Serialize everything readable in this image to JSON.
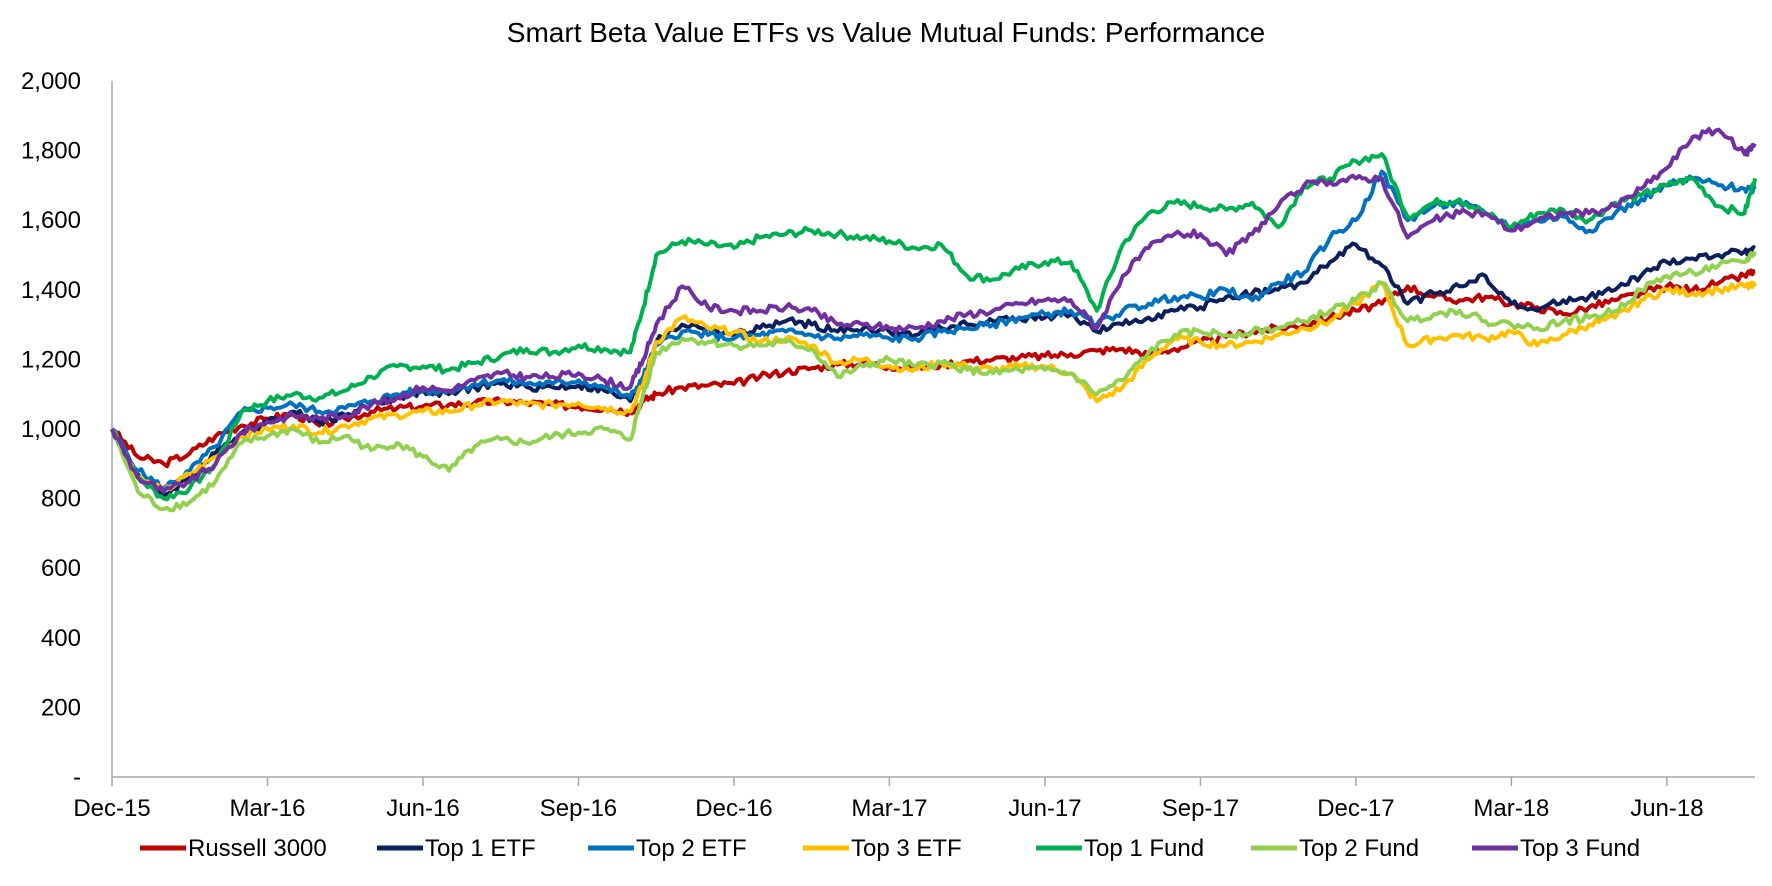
{
  "chart_data": {
    "type": "line",
    "title": "Smart Beta Value ETFs vs Value Mutual Funds: Performance",
    "xlabel": "",
    "ylabel": "",
    "ylim": [
      0,
      2000
    ],
    "yticks": [
      {
        "value": 0,
        "label": "-"
      },
      {
        "value": 200,
        "label": "200"
      },
      {
        "value": 400,
        "label": "400"
      },
      {
        "value": 600,
        "label": "600"
      },
      {
        "value": 800,
        "label": "800"
      },
      {
        "value": 1000,
        "label": "1,000"
      },
      {
        "value": 1200,
        "label": "1,200"
      },
      {
        "value": 1400,
        "label": "1,400"
      },
      {
        "value": 1600,
        "label": "1,600"
      },
      {
        "value": 1800,
        "label": "1,800"
      },
      {
        "value": 2000,
        "label": "2,000"
      }
    ],
    "xlim": [
      0,
      31.7
    ],
    "xticks": [
      {
        "value": 0,
        "label": "Dec-15"
      },
      {
        "value": 3,
        "label": "Mar-16"
      },
      {
        "value": 6,
        "label": "Jun-16"
      },
      {
        "value": 9,
        "label": "Sep-16"
      },
      {
        "value": 12,
        "label": "Dec-16"
      },
      {
        "value": 15,
        "label": "Mar-17"
      },
      {
        "value": 18,
        "label": "Jun-17"
      },
      {
        "value": 21,
        "label": "Sep-17"
      },
      {
        "value": 24,
        "label": "Dec-17"
      },
      {
        "value": 27,
        "label": "Mar-18"
      },
      {
        "value": 30,
        "label": "Jun-18"
      }
    ],
    "grid": false,
    "legend_position": "bottom",
    "x": [
      0,
      0.5,
      1,
      1.5,
      2,
      2.5,
      3,
      3.5,
      4,
      4.5,
      5,
      5.5,
      6,
      6.5,
      7,
      7.5,
      8,
      8.5,
      9,
      9.5,
      10,
      10.25,
      10.5,
      11,
      11.5,
      12,
      12.5,
      13,
      13.5,
      14,
      14.5,
      15,
      15.5,
      16,
      16.5,
      17,
      17.5,
      18,
      18.5,
      19,
      19.5,
      20,
      20.5,
      21,
      21.5,
      22,
      22.5,
      23,
      23.5,
      24,
      24.5,
      25,
      25.5,
      26,
      26.5,
      27,
      27.5,
      28,
      28.5,
      29,
      29.5,
      30,
      30.5,
      31,
      31.5,
      31.7
    ],
    "series": [
      {
        "name": "Russell 3000",
        "color": "#C00000",
        "values": [
          1000,
          920,
          900,
          930,
          980,
          1010,
          1030,
          1045,
          1010,
          1030,
          1050,
          1060,
          1065,
          1070,
          1075,
          1080,
          1075,
          1070,
          1065,
          1060,
          1050,
          1080,
          1100,
          1120,
          1125,
          1130,
          1150,
          1165,
          1175,
          1185,
          1190,
          1180,
          1175,
          1185,
          1195,
          1200,
          1205,
          1210,
          1215,
          1225,
          1230,
          1215,
          1230,
          1250,
          1265,
          1280,
          1290,
          1300,
          1320,
          1340,
          1360,
          1410,
          1380,
          1370,
          1380,
          1360,
          1350,
          1330,
          1350,
          1370,
          1390,
          1410,
          1400,
          1420,
          1440,
          1455
        ]
      },
      {
        "name": "Top 1 ETF",
        "color": "#0C1F5C",
        "values": [
          1000,
          870,
          810,
          860,
          930,
          990,
          1020,
          1050,
          1020,
          1040,
          1070,
          1090,
          1110,
          1100,
          1120,
          1130,
          1120,
          1120,
          1125,
          1110,
          1080,
          1150,
          1250,
          1300,
          1290,
          1270,
          1290,
          1310,
          1300,
          1280,
          1290,
          1280,
          1270,
          1290,
          1300,
          1310,
          1320,
          1320,
          1330,
          1280,
          1300,
          1320,
          1340,
          1350,
          1380,
          1390,
          1400,
          1420,
          1480,
          1530,
          1470,
          1360,
          1390,
          1410,
          1440,
          1360,
          1340,
          1370,
          1380,
          1400,
          1440,
          1480,
          1490,
          1500,
          1510,
          1520
        ]
      },
      {
        "name": "Top 2 ETF",
        "color": "#0070C0",
        "values": [
          1000,
          880,
          830,
          880,
          950,
          1050,
          1060,
          1070,
          1050,
          1060,
          1080,
          1100,
          1110,
          1110,
          1130,
          1140,
          1130,
          1130,
          1140,
          1120,
          1090,
          1150,
          1240,
          1280,
          1270,
          1260,
          1270,
          1280,
          1270,
          1260,
          1270,
          1260,
          1260,
          1280,
          1290,
          1300,
          1320,
          1330,
          1340,
          1300,
          1340,
          1360,
          1380,
          1380,
          1400,
          1370,
          1420,
          1450,
          1550,
          1600,
          1740,
          1600,
          1640,
          1650,
          1620,
          1580,
          1600,
          1610,
          1570,
          1620,
          1660,
          1700,
          1720,
          1700,
          1690,
          1690
        ]
      },
      {
        "name": "Top 3 ETF",
        "color": "#FFC000",
        "values": [
          1000,
          860,
          820,
          870,
          920,
          980,
          1000,
          1010,
          990,
          1010,
          1030,
          1040,
          1050,
          1050,
          1070,
          1080,
          1070,
          1070,
          1075,
          1060,
          1050,
          1130,
          1250,
          1320,
          1290,
          1280,
          1250,
          1260,
          1240,
          1190,
          1200,
          1180,
          1170,
          1190,
          1180,
          1170,
          1180,
          1180,
          1160,
          1080,
          1120,
          1200,
          1260,
          1250,
          1240,
          1250,
          1270,
          1290,
          1310,
          1360,
          1420,
          1240,
          1260,
          1270,
          1260,
          1280,
          1240,
          1270,
          1300,
          1320,
          1370,
          1400,
          1390,
          1400,
          1410,
          1410
        ]
      },
      {
        "name": "Top 1 Fund",
        "color": "#00B050",
        "values": [
          1000,
          860,
          800,
          830,
          900,
          1050,
          1080,
          1100,
          1090,
          1110,
          1150,
          1180,
          1180,
          1170,
          1190,
          1210,
          1230,
          1220,
          1240,
          1230,
          1220,
          1350,
          1500,
          1540,
          1530,
          1520,
          1550,
          1560,
          1570,
          1560,
          1550,
          1540,
          1520,
          1530,
          1440,
          1430,
          1460,
          1480,
          1480,
          1340,
          1530,
          1620,
          1650,
          1640,
          1630,
          1650,
          1580,
          1700,
          1720,
          1770,
          1790,
          1610,
          1650,
          1660,
          1620,
          1580,
          1620,
          1630,
          1600,
          1650,
          1670,
          1700,
          1720,
          1640,
          1620,
          1720
        ]
      },
      {
        "name": "Top 2 Fund",
        "color": "#92D050",
        "values": [
          1000,
          820,
          770,
          790,
          850,
          960,
          980,
          1000,
          960,
          980,
          940,
          960,
          920,
          880,
          950,
          970,
          960,
          980,
          990,
          1000,
          970,
          1100,
          1220,
          1260,
          1250,
          1240,
          1240,
          1250,
          1230,
          1150,
          1180,
          1200,
          1180,
          1190,
          1170,
          1160,
          1170,
          1170,
          1160,
          1100,
          1140,
          1220,
          1270,
          1280,
          1270,
          1280,
          1290,
          1310,
          1340,
          1370,
          1420,
          1310,
          1330,
          1340,
          1310,
          1300,
          1290,
          1310,
          1320,
          1340,
          1400,
          1440,
          1450,
          1470,
          1480,
          1510
        ]
      },
      {
        "name": "Top 3 Fund",
        "color": "#7030A0",
        "values": [
          1000,
          860,
          820,
          850,
          900,
          990,
          1020,
          1040,
          1030,
          1040,
          1070,
          1090,
          1120,
          1110,
          1140,
          1160,
          1150,
          1150,
          1160,
          1140,
          1120,
          1200,
          1300,
          1410,
          1350,
          1340,
          1340,
          1350,
          1340,
          1300,
          1300,
          1290,
          1290,
          1310,
          1330,
          1340,
          1360,
          1370,
          1370,
          1290,
          1440,
          1520,
          1560,
          1560,
          1500,
          1560,
          1640,
          1700,
          1710,
          1720,
          1720,
          1550,
          1600,
          1620,
          1620,
          1570,
          1600,
          1620,
          1620,
          1640,
          1690,
          1750,
          1840,
          1860,
          1790,
          1820
        ]
      }
    ]
  }
}
